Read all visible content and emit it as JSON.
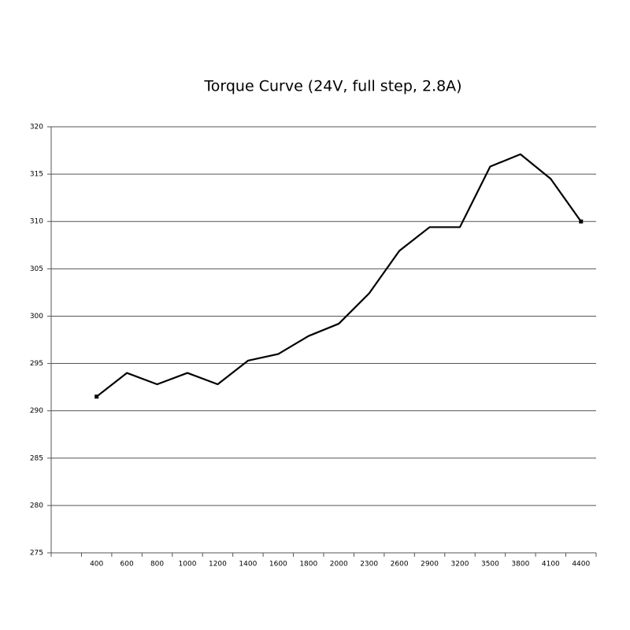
{
  "chart_data": {
    "type": "line",
    "title": "Torque Curve (24V, full step, 2.8A)",
    "categories": [
      null,
      "400",
      "600",
      "800",
      "1000",
      "1200",
      "1400",
      "1600",
      "1800",
      "2000",
      "2300",
      "2600",
      "2900",
      "3200",
      "3500",
      "3800",
      "4100",
      "4400"
    ],
    "values": [
      null,
      291.5,
      294.0,
      292.8,
      294.0,
      292.8,
      295.3,
      296.0,
      297.9,
      299.2,
      302.4,
      306.9,
      309.4,
      309.4,
      315.8,
      317.1,
      314.5,
      310.0
    ],
    "color": "#000000",
    "ylim": [
      275,
      320
    ],
    "yticks": [
      275,
      280,
      285,
      290,
      295,
      300,
      305,
      310,
      315,
      320
    ],
    "grid": true
  }
}
